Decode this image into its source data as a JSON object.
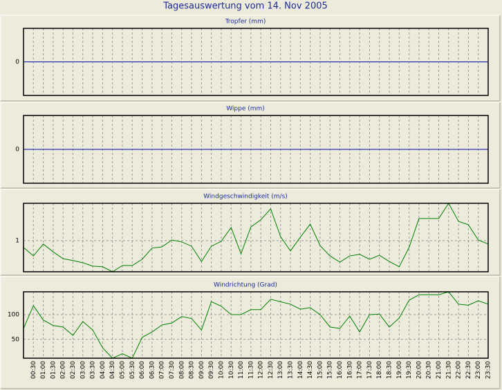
{
  "title": "Tagesauswertung vom 14. Nov 2005",
  "chart_data": [
    {
      "type": "line",
      "title": "Tropfer (mm)",
      "ylim": [
        -1,
        1
      ],
      "yticks": [
        0
      ],
      "grid": true,
      "color": "#0000a0",
      "values": [
        0,
        0,
        0,
        0,
        0,
        0,
        0,
        0,
        0,
        0,
        0,
        0,
        0,
        0,
        0,
        0,
        0,
        0,
        0,
        0,
        0,
        0,
        0,
        0,
        0,
        0,
        0,
        0,
        0,
        0,
        0,
        0,
        0,
        0,
        0,
        0,
        0,
        0,
        0,
        0,
        0,
        0,
        0,
        0,
        0,
        0,
        0,
        0
      ]
    },
    {
      "type": "line",
      "title": "Wippe (mm)",
      "ylim": [
        -1,
        1
      ],
      "yticks": [
        0
      ],
      "grid": true,
      "color": "#0000a0",
      "values": [
        0,
        0,
        0,
        0,
        0,
        0,
        0,
        0,
        0,
        0,
        0,
        0,
        0,
        0,
        0,
        0,
        0,
        0,
        0,
        0,
        0,
        0,
        0,
        0,
        0,
        0,
        0,
        0,
        0,
        0,
        0,
        0,
        0,
        0,
        0,
        0,
        0,
        0,
        0,
        0,
        0,
        0,
        0,
        0,
        0,
        0,
        0,
        0
      ]
    },
    {
      "type": "line",
      "title": "Windgeschwindigkeit (m/s)",
      "ylim": [
        0,
        2.2
      ],
      "yticks": [
        1
      ],
      "grid": true,
      "color": "#008000",
      "values": [
        0.78,
        0.51,
        0.89,
        0.64,
        0.42,
        0.36,
        0.29,
        0.18,
        0.16,
        0.0,
        0.2,
        0.2,
        0.4,
        0.76,
        0.8,
        1.02,
        0.96,
        0.82,
        0.33,
        0.82,
        0.98,
        1.42,
        0.58,
        1.44,
        1.67,
        2.02,
        1.13,
        0.67,
        1.11,
        1.53,
        0.84,
        0.51,
        0.31,
        0.51,
        0.56,
        0.4,
        0.53,
        0.33,
        0.16,
        0.78,
        1.71,
        1.71,
        1.71,
        2.2,
        1.62,
        1.51,
        1.02,
        0.89
      ]
    },
    {
      "type": "line",
      "title": "Windrichtung (Grad)",
      "ylim": [
        12,
        146
      ],
      "yticks": [
        50,
        100
      ],
      "grid": true,
      "color": "#008000",
      "categories": [
        null,
        "00:30",
        "01:00",
        "01:30",
        "02:00",
        "02:30",
        "03:00",
        "03:30",
        "04:00",
        "04:30",
        "05:00",
        "05:30",
        "06:00",
        "06:30",
        "07:00",
        "07:30",
        "08:00",
        "08:30",
        "09:00",
        "09:30",
        "10:00",
        "10:30",
        "11:00",
        "11:30",
        "12:00",
        "12:30",
        "13:00",
        "13:30",
        "14:00",
        "14:30",
        "15:00",
        "15:30",
        "16:00",
        "16:30",
        "17:00",
        "17:30",
        "18:00",
        "18:30",
        "19:00",
        "19:30",
        "20:00",
        "20:30",
        "21:00",
        "21:30",
        "22:00",
        "22:30",
        "23:00",
        "23:30"
      ],
      "values": [
        72,
        118,
        89,
        78,
        75,
        58,
        86,
        69,
        33,
        12,
        21,
        12,
        54,
        65,
        79,
        83,
        96,
        92,
        69,
        126,
        117,
        100,
        100,
        110,
        110,
        131,
        126,
        121,
        111,
        114,
        100,
        75,
        72,
        97,
        65,
        100,
        101,
        75,
        93,
        129,
        140,
        140,
        140,
        146,
        121,
        119,
        128,
        121
      ]
    }
  ]
}
